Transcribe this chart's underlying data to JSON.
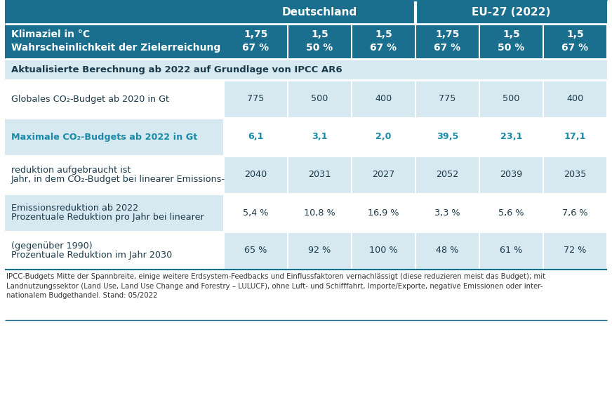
{
  "teal_dark": "#1a6e8e",
  "teal_light": "#2a8aaa",
  "cell_blue_light": "#d6e8f0",
  "cell_white": "#ffffff",
  "cell_stripe": "#e8f2f8",
  "text_dark": "#1a3a4a",
  "text_teal": "#1a8aaa",
  "text_white": "#ffffff",
  "subheaders_line1": [
    "1,75",
    "1,5",
    "1,5",
    "1,75",
    "1,5",
    "1,5"
  ],
  "subheaders_line2": [
    "67 %",
    "50 %",
    "67 %",
    "67 %",
    "50 %",
    "67 %"
  ],
  "row_label_col1": "Klimaziel in °C",
  "row_label_col2": "Wahrscheinlichkeit der Zielerreichung",
  "section_header": "Aktualisierte Berechnung ab 2022 auf Grundlage von IPCC AR6",
  "rows": [
    {
      "label_lines": [
        "Globales CO₂-Budget ab 2020 in Gt"
      ],
      "values": [
        "775",
        "500",
        "400",
        "775",
        "500",
        "400"
      ],
      "teal": false,
      "bg": "white"
    },
    {
      "label_lines": [
        "Maximale CO₂-Budgets ab 2022 in Gt"
      ],
      "values": [
        "6,1",
        "3,1",
        "2,0",
        "39,5",
        "23,1",
        "17,1"
      ],
      "teal": true,
      "bg": "blue"
    },
    {
      "label_lines": [
        "Jahr, in dem CO₂-Budget bei linearer Emissions-",
        "reduktion aufgebraucht ist"
      ],
      "values": [
        "2040",
        "2031",
        "2027",
        "2052",
        "2039",
        "2035"
      ],
      "teal": false,
      "bg": "white"
    },
    {
      "label_lines": [
        "Prozentuale Reduktion pro Jahr bei linearer",
        "Emissionsreduktion ab 2022"
      ],
      "values": [
        "5,4 %",
        "10,8 %",
        "16,9 %",
        "3,3 %",
        "5,6 %",
        "7,6 %"
      ],
      "teal": false,
      "bg": "blue"
    },
    {
      "label_lines": [
        "Prozentuale Reduktion im Jahr 2030",
        "(gegenüber 1990)"
      ],
      "values": [
        "65 %",
        "92 %",
        "100 %",
        "48 %",
        "61 %",
        "72 %"
      ],
      "teal": false,
      "bg": "white"
    }
  ],
  "footer_text": "IPCC-Budgets Mitte der Spannbreite, einige weitere Erdsystem-Feedbacks und Einflussfaktoren vernachlässigt (diese reduzieren meist das Budget); mit\nLandnutzungssektor (Land Use, Land Use Change and Forestry – LULUCF), ohne Luft- und Schifffahrt, Importe/Exporte, negative Emissionen oder inter-\nnationalem Budgethandel. Stand: 05/2022"
}
